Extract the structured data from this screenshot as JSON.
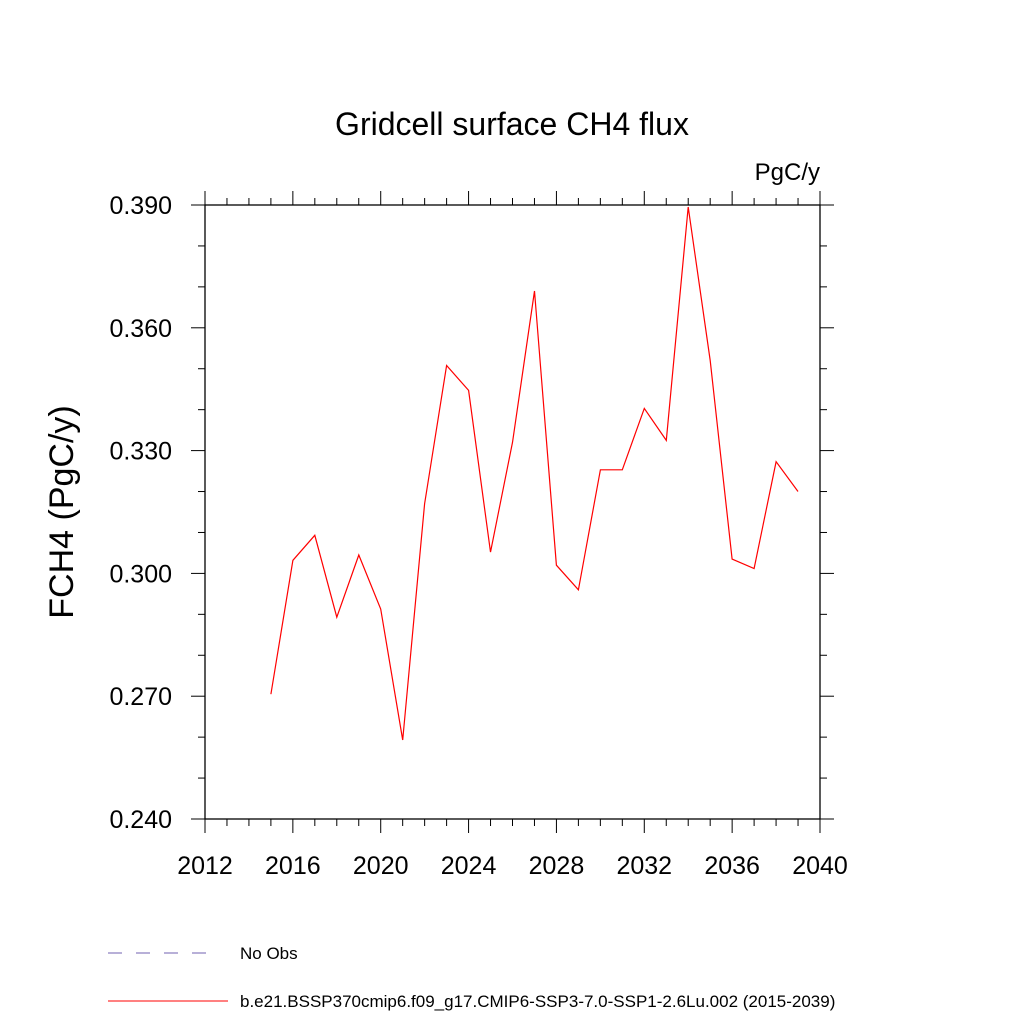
{
  "chart_data": {
    "type": "line",
    "title": "Gridcell surface CH4 flux",
    "units": "PgC/y",
    "ylabel": "FCH4  (PgC/y)",
    "xlabel": "",
    "xlim": [
      2012,
      2040
    ],
    "ylim": [
      0.24,
      0.39
    ],
    "x_ticks": [
      "2012",
      "2016",
      "2020",
      "2024",
      "2028",
      "2032",
      "2036",
      "2040"
    ],
    "y_ticks": [
      "0.240",
      "0.270",
      "0.300",
      "0.330",
      "0.360",
      "0.390"
    ],
    "grid": false,
    "series": [
      {
        "name": "b.e21.BSSP370cmip6.f09_g17.CMIP6-SSP3-7.0-SSP1-2.6Lu.002 (2015-2039)",
        "color": "#ff0000",
        "x": [
          2015,
          2016,
          2017,
          2018,
          2019,
          2020,
          2021,
          2022,
          2023,
          2024,
          2025,
          2026,
          2027,
          2028,
          2029,
          2030,
          2031,
          2032,
          2033,
          2034,
          2035,
          2036,
          2037,
          2038,
          2039
        ],
        "values": [
          0.2705,
          0.3032,
          0.3093,
          0.2893,
          0.3045,
          0.2913,
          0.2593,
          0.317,
          0.3508,
          0.3447,
          0.3052,
          0.332,
          0.369,
          0.302,
          0.296,
          0.3253,
          0.3253,
          0.3403,
          0.3325,
          0.3895,
          0.352,
          0.3035,
          0.3012,
          0.3273,
          0.32
        ]
      }
    ],
    "legend": [
      {
        "label": "No Obs",
        "color": "#7060b0",
        "dash": true
      },
      {
        "label": "b.e21.BSSP370cmip6.f09_g17.CMIP6-SSP3-7.0-SSP1-2.6Lu.002 (2015-2039)",
        "color": "#ff0000",
        "dash": false
      }
    ]
  }
}
